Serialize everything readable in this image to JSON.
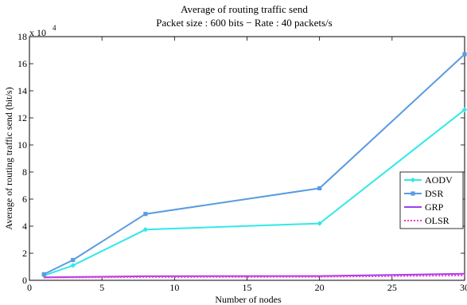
{
  "chart_data": {
    "type": "line",
    "title": "Average of routing traffic send",
    "subtitle": "Packet size : 600 bits − Rate : 40 packets/s",
    "xlabel": "Number of nodes",
    "ylabel": "Average of routing traffic send (bit/s)",
    "y_multiplier": "x 10",
    "y_multiplier_exp": "4",
    "xlim": [
      0,
      30
    ],
    "ylim": [
      0,
      18
    ],
    "xticks": [
      0,
      5,
      10,
      15,
      20,
      25,
      30
    ],
    "yticks": [
      0,
      2,
      4,
      6,
      8,
      10,
      12,
      14,
      16,
      18
    ],
    "grid": false,
    "legend_position": "right",
    "series": [
      {
        "name": "AODV",
        "color": "#33e8e8",
        "marker": "diamond",
        "style": "solid",
        "x": [
          1,
          3,
          8,
          20,
          30
        ],
        "y": [
          0.35,
          1.1,
          3.75,
          4.2,
          12.6
        ]
      },
      {
        "name": "DSR",
        "color": "#5b9be0",
        "marker": "square",
        "style": "solid",
        "x": [
          1,
          3,
          8,
          20,
          30
        ],
        "y": [
          0.45,
          1.5,
          4.9,
          6.8,
          16.7
        ]
      },
      {
        "name": "GRP",
        "color": "#a040f0",
        "marker": "none",
        "style": "solid",
        "x": [
          1,
          3,
          8,
          20,
          30
        ],
        "y": [
          0.22,
          0.24,
          0.3,
          0.32,
          0.48
        ]
      },
      {
        "name": "OLSR",
        "color": "#ff33cc",
        "marker": "none",
        "style": "dotted",
        "x": [
          1,
          3,
          8,
          20,
          30
        ],
        "y": [
          0.2,
          0.21,
          0.24,
          0.26,
          0.36
        ]
      }
    ]
  }
}
